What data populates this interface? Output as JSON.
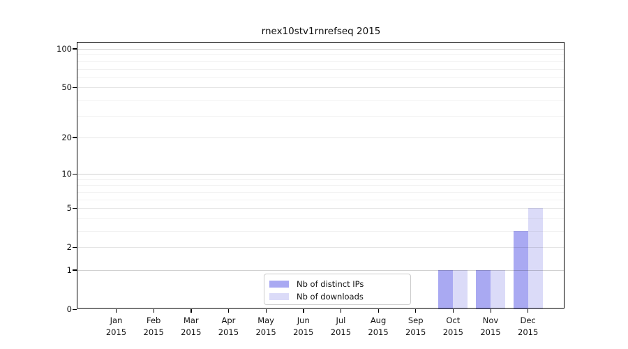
{
  "chart_data": {
    "type": "bar",
    "title": "rnex10stv1rnrefseq 2015",
    "year_label": "2015",
    "categories": [
      "Jan",
      "Feb",
      "Mar",
      "Apr",
      "May",
      "Jun",
      "Jul",
      "Aug",
      "Sep",
      "Oct",
      "Nov",
      "Dec"
    ],
    "series": [
      {
        "name": "Nb of distinct IPs",
        "color": "#a9a9f2",
        "values": [
          0,
          0,
          0,
          0,
          0,
          0,
          0,
          0,
          0,
          1,
          1,
          3
        ]
      },
      {
        "name": "Nb of downloads",
        "color": "#dbdbf8",
        "values": [
          0,
          0,
          0,
          0,
          0,
          0,
          0,
          0,
          0,
          1,
          1,
          5
        ]
      }
    ],
    "yscale": "log1p",
    "yticks": [
      0,
      1,
      2,
      5,
      10,
      20,
      50,
      100
    ],
    "ytick_labels": [
      "0",
      "1",
      "2",
      "5",
      "10",
      "20",
      "50",
      "100"
    ],
    "ylim": [
      0,
      113
    ],
    "grid": true,
    "legend_position": "lower-center-inside",
    "xlabel": "",
    "ylabel": ""
  }
}
